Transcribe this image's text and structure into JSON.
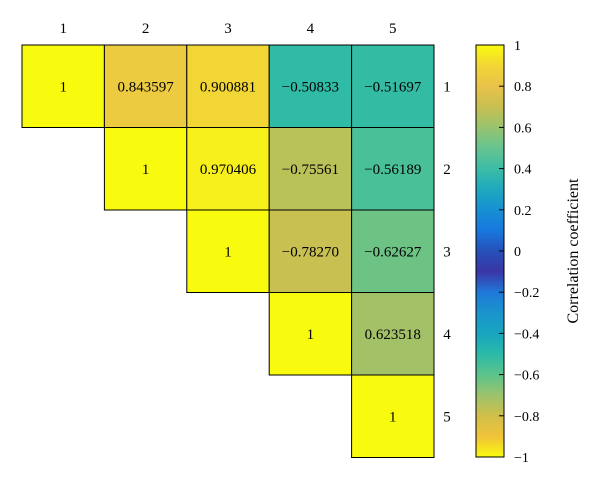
{
  "chart_data": {
    "type": "heatmap",
    "layout": "upper-triangular",
    "col_labels": [
      "1",
      "2",
      "3",
      "4",
      "5"
    ],
    "row_labels": [
      "1",
      "2",
      "3",
      "4",
      "5"
    ],
    "cells": [
      {
        "row": 1,
        "col": 1,
        "value": 1,
        "label": "1"
      },
      {
        "row": 1,
        "col": 2,
        "value": 0.843597,
        "label": "0.843597"
      },
      {
        "row": 1,
        "col": 3,
        "value": 0.900881,
        "label": "0.900881"
      },
      {
        "row": 1,
        "col": 4,
        "value": -0.50833,
        "label": "−0.50833"
      },
      {
        "row": 1,
        "col": 5,
        "value": -0.51697,
        "label": "−0.51697"
      },
      {
        "row": 2,
        "col": 2,
        "value": 1,
        "label": "1"
      },
      {
        "row": 2,
        "col": 3,
        "value": 0.970406,
        "label": "0.970406"
      },
      {
        "row": 2,
        "col": 4,
        "value": -0.75561,
        "label": "−0.75561"
      },
      {
        "row": 2,
        "col": 5,
        "value": -0.56189,
        "label": "−0.56189"
      },
      {
        "row": 3,
        "col": 3,
        "value": 1,
        "label": "1"
      },
      {
        "row": 3,
        "col": 4,
        "value": -0.7827,
        "label": "−0.78270"
      },
      {
        "row": 3,
        "col": 5,
        "value": -0.62627,
        "label": "−0.62627"
      },
      {
        "row": 4,
        "col": 4,
        "value": 1,
        "label": "1"
      },
      {
        "row": 4,
        "col": 5,
        "value": 0.623518,
        "label": "0.623518"
      },
      {
        "row": 5,
        "col": 5,
        "value": 1,
        "label": "1"
      }
    ],
    "colorbar": {
      "label": "Correlation coefficient",
      "range": [
        -1,
        1
      ],
      "ticks": [
        {
          "value": 1,
          "label": "1"
        },
        {
          "value": 0.8,
          "label": "0.8"
        },
        {
          "value": 0.6,
          "label": "0.6"
        },
        {
          "value": 0.4,
          "label": "0.4"
        },
        {
          "value": 0.2,
          "label": "0.2"
        },
        {
          "value": 0,
          "label": "0"
        },
        {
          "value": -0.2,
          "label": "−0.2"
        },
        {
          "value": -0.4,
          "label": "−0.4"
        },
        {
          "value": -0.6,
          "label": "−0.6"
        },
        {
          "value": -0.8,
          "label": "−0.8"
        },
        {
          "value": -1,
          "label": "−1"
        }
      ],
      "stops": [
        {
          "value": 1,
          "color": "#f9fb0e"
        },
        {
          "value": 0.9,
          "color": "#f1d635"
        },
        {
          "value": 0.8,
          "color": "#e9c24a"
        },
        {
          "value": 0.7,
          "color": "#c8c050"
        },
        {
          "value": 0.6,
          "color": "#98c36f"
        },
        {
          "value": 0.5,
          "color": "#66c490"
        },
        {
          "value": 0.4,
          "color": "#3dbca6"
        },
        {
          "value": 0.3,
          "color": "#1ea9bd"
        },
        {
          "value": 0.2,
          "color": "#1790d2"
        },
        {
          "value": 0.1,
          "color": "#1778df"
        },
        {
          "value": 0,
          "color": "#2650b8"
        },
        {
          "value": -0.1,
          "color": "#3a36a6"
        },
        {
          "value": -0.2,
          "color": "#1f78d8"
        },
        {
          "value": -0.3,
          "color": "#1a94cc"
        },
        {
          "value": -0.4,
          "color": "#17a5c0"
        },
        {
          "value": -0.5,
          "color": "#2bbaa8"
        },
        {
          "value": -0.6,
          "color": "#5cc38c"
        },
        {
          "value": -0.7,
          "color": "#9cc36c"
        },
        {
          "value": -0.8,
          "color": "#d1bf4a"
        },
        {
          "value": -0.9,
          "color": "#f0c33a"
        },
        {
          "value": -1,
          "color": "#f9fb0e"
        }
      ]
    }
  }
}
